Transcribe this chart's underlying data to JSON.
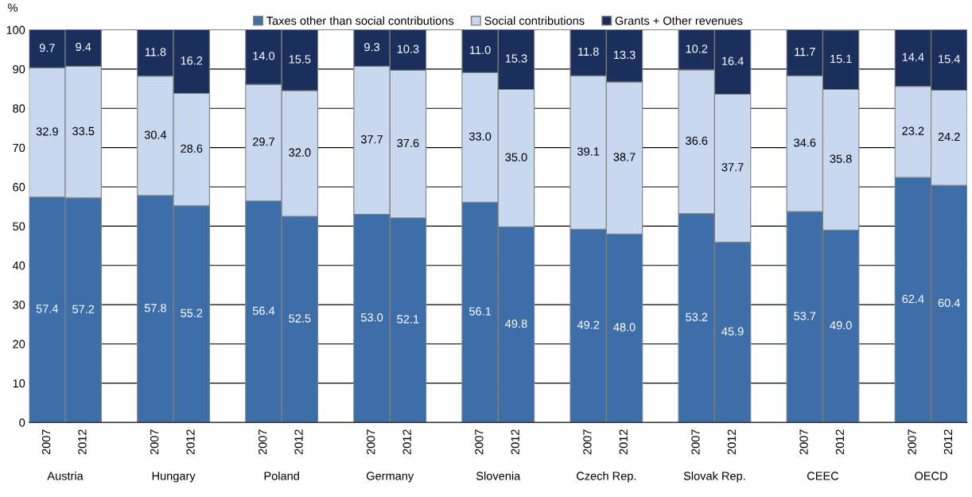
{
  "chart_data": {
    "type": "bar",
    "stacked": true,
    "ylabel": "%",
    "ylim": [
      0,
      100
    ],
    "yticks": [
      0,
      10,
      20,
      30,
      40,
      50,
      60,
      70,
      80,
      90,
      100
    ],
    "grid": "y",
    "legend": "top",
    "categories": [
      "2007",
      "2012",
      null,
      "2007",
      "2012",
      null,
      "2007",
      "2012",
      null,
      "2007",
      "2012",
      null,
      "2007",
      "2012",
      null,
      "2007",
      "2012",
      null,
      "2007",
      "2012",
      null,
      "2007",
      "2012",
      null,
      "2007",
      "2012"
    ],
    "annotations": [
      "Austria",
      "Hungary",
      "Poland",
      "Germany",
      "Slovenia",
      "Czech Rep.",
      "Slovak Rep.",
      "CEEC",
      "OECD"
    ],
    "series": [
      {
        "name": "Taxes other than social contributions",
        "color": "#3e6ea8",
        "values": [
          57.4,
          57.2,
          null,
          57.8,
          55.2,
          null,
          56.4,
          52.5,
          null,
          53.0,
          52.1,
          null,
          56.1,
          49.8,
          null,
          49.2,
          48.0,
          null,
          53.2,
          45.9,
          null,
          53.7,
          49.0,
          null,
          62.4,
          60.4
        ],
        "value_labels": [
          "57.4",
          "57.2",
          null,
          "57.8",
          "55.2",
          null,
          "56.4",
          "52.5",
          null,
          "53.0",
          "52.1",
          null,
          "56.1",
          "49.8",
          null,
          "49.2",
          "48.0",
          null,
          "53.2",
          "45.9",
          null,
          "53.7",
          "49.0",
          null,
          "62.4",
          "60.4"
        ]
      },
      {
        "name": "Social contributions",
        "color": "#c7d8ef",
        "values": [
          32.9,
          33.5,
          null,
          30.4,
          28.6,
          null,
          29.7,
          32.0,
          null,
          37.7,
          37.6,
          null,
          33.0,
          35.0,
          null,
          39.1,
          38.7,
          null,
          36.6,
          37.7,
          null,
          34.6,
          35.8,
          null,
          23.2,
          24.2
        ],
        "value_labels": [
          "32.9",
          "33.5",
          null,
          "30.4",
          "28.6",
          null,
          "29.7",
          "32.0",
          null,
          "37.7",
          "37.6",
          null,
          "33.0",
          "35.0",
          null,
          "39.1",
          "38.7",
          null,
          "36.6",
          "37.7",
          null,
          "34.6",
          "35.8",
          null,
          "23.2",
          "24.2"
        ]
      },
      {
        "name": "Grants + Other revenues",
        "color": "#1b2f5c",
        "values": [
          9.7,
          9.4,
          null,
          11.8,
          16.2,
          null,
          14.0,
          15.5,
          null,
          9.3,
          10.3,
          null,
          11.0,
          15.3,
          null,
          11.8,
          13.3,
          null,
          10.2,
          16.4,
          null,
          11.7,
          15.1,
          null,
          14.4,
          15.4
        ],
        "value_labels": [
          "9.7",
          "9.4",
          null,
          "11.8",
          "16.2",
          null,
          "14.0",
          "15.5",
          null,
          "9.3",
          "10.3",
          null,
          "11.0",
          "15.3",
          null,
          "11.8",
          "13.3",
          null,
          "10.2",
          "16.4",
          null,
          "11.7",
          "15.1",
          null,
          "14.4",
          "15.4"
        ]
      }
    ]
  }
}
